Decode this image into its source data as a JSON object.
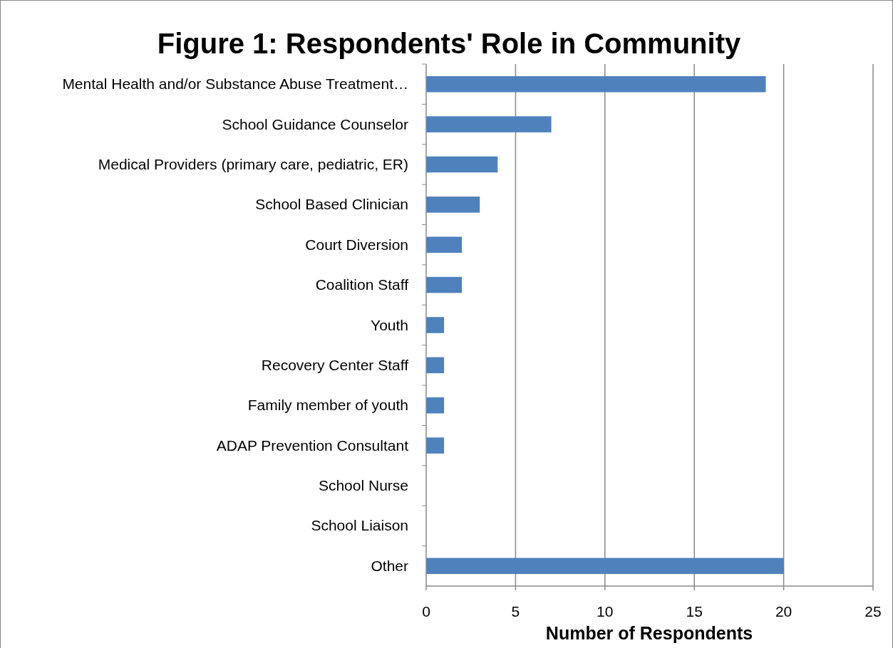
{
  "chart_data": {
    "type": "bar",
    "orientation": "horizontal",
    "title": "Figure 1: Respondents' Role in Community",
    "xlabel": "Number of Respondents",
    "categories": [
      "Mental Health and/or Substance Abuse Treatment…",
      "School Guidance Counselor",
      "Medical Providers (primary care, pediatric, ER)",
      "School Based Clinician",
      "Court Diversion",
      "Coalition Staff",
      "Youth",
      "Recovery Center Staff",
      "Family member of youth",
      "ADAP Prevention Consultant",
      "School Nurse",
      "School Liaison",
      "Other"
    ],
    "values": [
      19,
      7,
      4,
      3,
      2,
      2,
      1,
      1,
      1,
      1,
      0,
      0,
      20
    ],
    "color": "#4f81bd",
    "xlim": [
      0,
      25
    ],
    "xticks": [
      0,
      5,
      10,
      15,
      20,
      25
    ],
    "grid": "x"
  }
}
